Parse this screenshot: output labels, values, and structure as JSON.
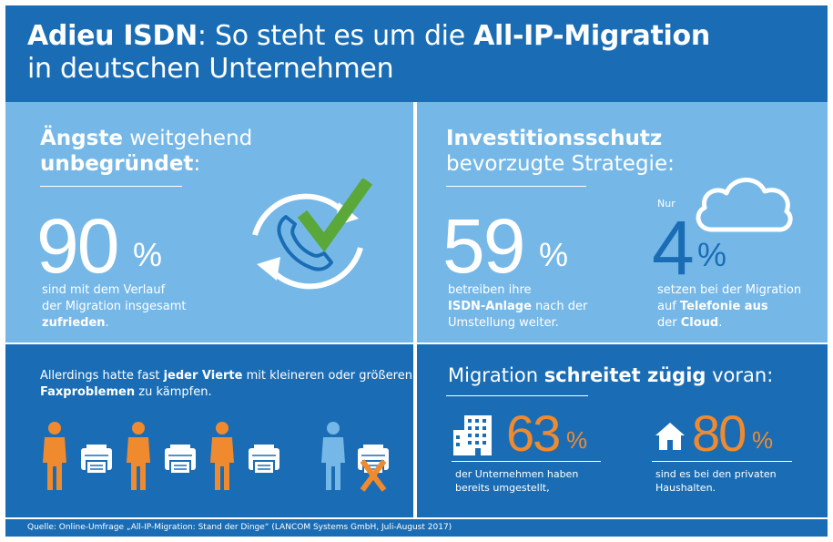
{
  "header": {
    "title_bold_1": "Adieu ISDN",
    "title_rest_1": ": So steht es um die ",
    "title_bold_2": "All-IP-Migration",
    "title_line_2": "in deutschen Unternehmen"
  },
  "fears": {
    "heading_bold": "Ängste",
    "heading_rest": " weitgehend",
    "heading_bold_2": "unbegründet",
    "heading_colon": ":",
    "value": "90",
    "unit": "%",
    "desc_1": "sind mit dem Verlauf",
    "desc_2": "der Migration insgesamt",
    "desc_bold": "zufrieden",
    "desc_end": ".",
    "icon": "phone-refresh-check-icon"
  },
  "protection": {
    "heading_bold": "Investitionsschutz",
    "heading_rest": "bevorzugte Strategie:",
    "value": "59",
    "unit": "%",
    "desc_1": "betreiben ihre",
    "desc_bold": "ISDN-Anlage",
    "desc_2": " nach der",
    "desc_3": "Umstellung weiter.",
    "cloud_prefix": "Nur",
    "cloud_value": "4",
    "cloud_unit": "%",
    "cloud_desc_1": "setzen bei der Migration",
    "cloud_desc_2": "auf ",
    "cloud_desc_bold_1": "Telefonie aus",
    "cloud_desc_3": "der ",
    "cloud_desc_bold_2": "Cloud",
    "cloud_desc_end": ".",
    "cloud_icon": "cloud-icon"
  },
  "fax": {
    "text_1": "Allerdings hatte fast ",
    "text_bold_1": "jeder Vierte",
    "text_2": " mit kleineren oder größeren",
    "text_bold_2": "Faxproblemen",
    "text_3": " zu kämpfen.",
    "figures_total": 4,
    "figures_affected": 1,
    "colors": {
      "ok": "#f08a2e",
      "affected": "#75b8e8"
    }
  },
  "migration": {
    "heading_1": "Migration ",
    "heading_bold": "schreitet zügig",
    "heading_2": " voran:",
    "companies_value": "63",
    "companies_unit": "%",
    "companies_desc_1": "der Unternehmen haben",
    "companies_desc_2": "bereits umgestellt,",
    "households_value": "80",
    "households_unit": "%",
    "households_desc_1": "sind es bei den privaten",
    "households_desc_2": "Haushalten."
  },
  "footer": {
    "source": "Quelle: Online-Umfrage „All-IP-Migration: Stand der Dinge“ (LANCOM Systems GmbH, Juli-August 2017)"
  },
  "colors": {
    "dark_blue": "#1a6db5",
    "light_blue": "#75b8e8",
    "orange": "#f08a2e",
    "green": "#5aa839"
  }
}
